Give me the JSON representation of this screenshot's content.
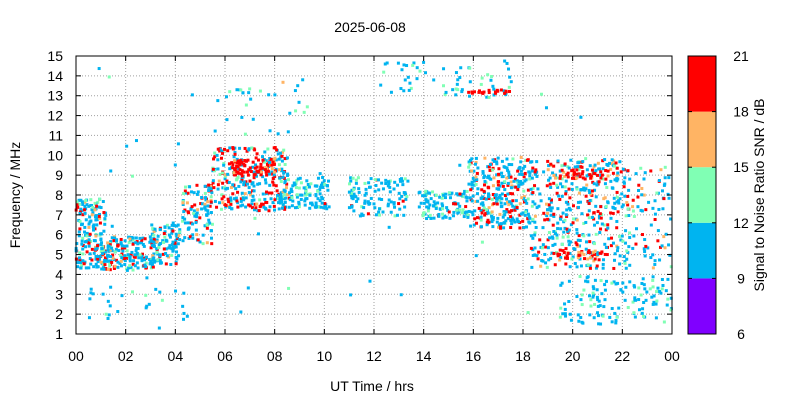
{
  "chart_data": {
    "type": "scatter",
    "title": "2025-06-08",
    "xlabel": "UT Time / hrs",
    "ylabel": "Frequency / MHz",
    "xlim": [
      0,
      24
    ],
    "ylim": [
      1,
      15
    ],
    "x_tick_labels": [
      "00",
      "02",
      "04",
      "06",
      "08",
      "10",
      "12",
      "14",
      "16",
      "18",
      "20",
      "22",
      "00"
    ],
    "y_tick_labels": [
      "1",
      "2",
      "3",
      "4",
      "5",
      "6",
      "7",
      "8",
      "9",
      "10",
      "11",
      "12",
      "13",
      "14",
      "15"
    ],
    "grid": true,
    "colorbar": {
      "label": "Signal to Noise Ratio SNR / dB",
      "ticks": [
        "6",
        "9",
        "12",
        "15",
        "18",
        "21"
      ],
      "range": [
        6,
        21
      ],
      "bands": [
        {
          "from": 6,
          "to": 9,
          "color": "#8000ff"
        },
        {
          "from": 9,
          "to": 12,
          "color": "#00b4f0"
        },
        {
          "from": 12,
          "to": 15,
          "color": "#80ffb4"
        },
        {
          "from": 15,
          "to": 18,
          "color": "#ffb464"
        },
        {
          "from": 18,
          "to": 21,
          "color": "#ff0000"
        }
      ]
    },
    "regions": [
      {
        "t": [
          0.0,
          1.2
        ],
        "f": [
          4.3,
          7.8
        ],
        "n": 170,
        "snr": [
          9,
          20
        ],
        "hi": 0.22
      },
      {
        "t": [
          1.0,
          3.2
        ],
        "f": [
          4.2,
          5.9
        ],
        "n": 190,
        "snr": [
          9,
          20
        ],
        "hi": 0.28
      },
      {
        "t": [
          3.0,
          4.2
        ],
        "f": [
          4.5,
          6.6
        ],
        "n": 110,
        "snr": [
          9,
          18
        ],
        "hi": 0.15
      },
      {
        "t": [
          4.2,
          5.5
        ],
        "f": [
          5.5,
          8.5
        ],
        "n": 110,
        "snr": [
          9,
          19
        ],
        "hi": 0.18
      },
      {
        "t": [
          5.5,
          8.6
        ],
        "f": [
          7.2,
          10.4
        ],
        "n": 290,
        "snr": [
          9,
          21
        ],
        "hi": 0.32
      },
      {
        "t": [
          6.3,
          8.2
        ],
        "f": [
          9.0,
          9.8
        ],
        "n": 70,
        "snr": [
          16,
          21
        ],
        "hi": 0.7
      },
      {
        "t": [
          8.2,
          10.2
        ],
        "f": [
          7.3,
          8.9
        ],
        "n": 110,
        "snr": [
          9,
          15
        ],
        "hi": 0.02
      },
      {
        "t": [
          11.0,
          13.4
        ],
        "f": [
          6.9,
          8.9
        ],
        "n": 110,
        "snr": [
          9,
          15
        ],
        "hi": 0.03
      },
      {
        "t": [
          13.8,
          15.8
        ],
        "f": [
          6.8,
          8.2
        ],
        "n": 110,
        "snr": [
          9,
          15
        ],
        "hi": 0.03
      },
      {
        "t": [
          15.8,
          18.3
        ],
        "f": [
          6.3,
          9.9
        ],
        "n": 300,
        "snr": [
          9,
          21
        ],
        "hi": 0.25
      },
      {
        "t": [
          18.3,
          22.3
        ],
        "f": [
          4.3,
          9.8
        ],
        "n": 420,
        "snr": [
          9,
          21
        ],
        "hi": 0.2
      },
      {
        "t": [
          19.2,
          21.8
        ],
        "f": [
          8.8,
          9.3
        ],
        "n": 40,
        "snr": [
          17,
          21
        ],
        "hi": 0.75
      },
      {
        "t": [
          19.4,
          21.2
        ],
        "f": [
          4.7,
          5.2
        ],
        "n": 35,
        "snr": [
          17,
          21
        ],
        "hi": 0.6
      },
      {
        "t": [
          19.5,
          24.0
        ],
        "f": [
          1.5,
          3.9
        ],
        "n": 130,
        "snr": [
          9,
          14
        ],
        "hi": 0.0
      },
      {
        "t": [
          22.4,
          24.0
        ],
        "f": [
          4.2,
          9.4
        ],
        "n": 70,
        "snr": [
          9,
          20
        ],
        "hi": 0.15
      },
      {
        "t": [
          12.2,
          17.6
        ],
        "f": [
          12.9,
          14.7
        ],
        "n": 60,
        "snr": [
          9,
          13
        ],
        "hi": 0.0
      },
      {
        "t": [
          15.5,
          17.6
        ],
        "f": [
          13.1,
          13.3
        ],
        "n": 22,
        "snr": [
          19,
          21
        ],
        "hi": 1.0
      },
      {
        "t": [
          0.5,
          4.5
        ],
        "f": [
          1.7,
          3.4
        ],
        "n": 28,
        "snr": [
          9,
          14
        ],
        "hi": 0.0
      },
      {
        "t": [
          5.6,
          9.4
        ],
        "f": [
          11.0,
          14.0
        ],
        "n": 30,
        "snr": [
          9,
          16
        ],
        "hi": 0.1
      },
      {
        "t": [
          0.2,
          23.8
        ],
        "f": [
          1.3,
          14.8
        ],
        "n": 45,
        "snr": [
          9,
          14
        ],
        "hi": 0.0
      }
    ]
  }
}
